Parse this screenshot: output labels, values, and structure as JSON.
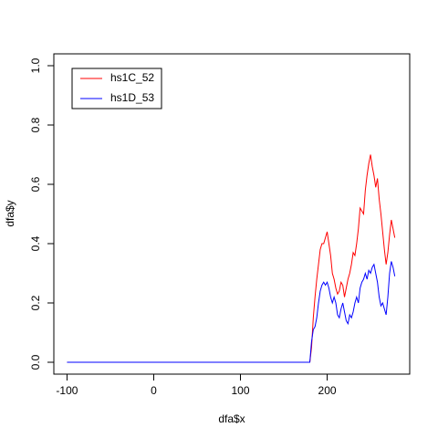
{
  "chart_data": {
    "type": "line",
    "xlabel": "dfa$x",
    "ylabel": "dfa$y",
    "x": [
      -100,
      180,
      182,
      184,
      186,
      188,
      190,
      192,
      194,
      196,
      198,
      200,
      202,
      204,
      206,
      208,
      210,
      212,
      214,
      216,
      218,
      220,
      222,
      224,
      226,
      228,
      230,
      232,
      234,
      236,
      238,
      240,
      242,
      244,
      246,
      248,
      250,
      252,
      254,
      256,
      258,
      260,
      262,
      264,
      266,
      268,
      270,
      272,
      274,
      276,
      278
    ],
    "series": [
      {
        "name": "hs1C_52",
        "color": "#ff0000",
        "values": [
          0,
          0,
          0.05,
          0.15,
          0.22,
          0.28,
          0.33,
          0.38,
          0.4,
          0.4,
          0.42,
          0.44,
          0.4,
          0.36,
          0.3,
          0.28,
          0.25,
          0.23,
          0.24,
          0.27,
          0.26,
          0.22,
          0.25,
          0.28,
          0.3,
          0.33,
          0.37,
          0.36,
          0.4,
          0.45,
          0.52,
          0.51,
          0.5,
          0.58,
          0.63,
          0.67,
          0.7,
          0.66,
          0.63,
          0.59,
          0.62,
          0.55,
          0.5,
          0.44,
          0.38,
          0.33,
          0.37,
          0.43,
          0.48,
          0.45,
          0.42
        ]
      },
      {
        "name": "hs1D_53",
        "color": "#0000ff",
        "values": [
          0,
          0,
          0.07,
          0.11,
          0.12,
          0.15,
          0.2,
          0.24,
          0.26,
          0.27,
          0.26,
          0.27,
          0.25,
          0.22,
          0.2,
          0.22,
          0.2,
          0.16,
          0.15,
          0.18,
          0.2,
          0.17,
          0.14,
          0.13,
          0.16,
          0.15,
          0.17,
          0.2,
          0.22,
          0.2,
          0.25,
          0.27,
          0.28,
          0.3,
          0.28,
          0.31,
          0.3,
          0.32,
          0.33,
          0.3,
          0.27,
          0.22,
          0.19,
          0.2,
          0.18,
          0.16,
          0.22,
          0.3,
          0.34,
          0.32,
          0.29
        ]
      }
    ],
    "xlim": [
      -115.2,
      295.2
    ],
    "ylim": [
      -0.04,
      1.04
    ],
    "xticks": [
      -100,
      0,
      100,
      200
    ],
    "yticks": [
      {
        "value": 0,
        "label": "0.0"
      },
      {
        "value": 0.2,
        "label": "0.2"
      },
      {
        "value": 0.4,
        "label": "0.4"
      },
      {
        "value": 0.6,
        "label": "0.6"
      },
      {
        "value": 0.8,
        "label": "0.8"
      },
      {
        "value": 1,
        "label": "1.0"
      }
    ],
    "legend": "top-left"
  }
}
